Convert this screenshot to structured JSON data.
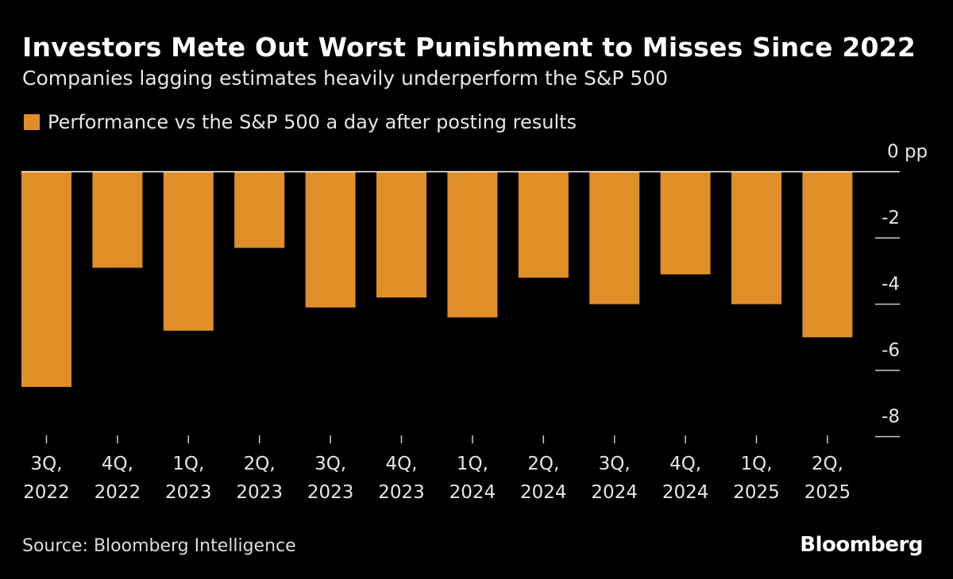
{
  "chart_data": {
    "type": "bar",
    "title": "Investors Mete Out Worst Punishment to Misses Since 2022",
    "subtitle": "Companies lagging estimates heavily underperform the S&P 500",
    "legend": [
      "Performance vs the S&P 500 a day after posting results"
    ],
    "legend_placement": "top-left",
    "categories": [
      [
        "3Q,",
        "2022"
      ],
      [
        "4Q,",
        "2022"
      ],
      [
        "1Q,",
        "2023"
      ],
      [
        "2Q,",
        "2023"
      ],
      [
        "3Q,",
        "2023"
      ],
      [
        "4Q,",
        "2023"
      ],
      [
        "1Q,",
        "2024"
      ],
      [
        "2Q,",
        "2024"
      ],
      [
        "3Q,",
        "2024"
      ],
      [
        "4Q,",
        "2024"
      ],
      [
        "1Q,",
        "2025"
      ],
      [
        "2Q,",
        "2025"
      ]
    ],
    "series": [
      {
        "name": "Performance vs the S&P 500 a day after posting results",
        "values": [
          -6.5,
          -2.9,
          -4.8,
          -2.3,
          -4.1,
          -3.8,
          -4.4,
          -3.2,
          -4.0,
          -3.1,
          -4.0,
          -5.0
        ],
        "color": "#e08e27"
      }
    ],
    "ylim": [
      -8,
      0
    ],
    "yticks": [
      0,
      -2,
      -4,
      -6,
      -8
    ],
    "ytick_labels": [
      "0 pp",
      "-2",
      "-4",
      "-6",
      "-8"
    ],
    "y_axis_side": "right",
    "grid": false,
    "source": "Source: Bloomberg Intelligence",
    "logo": "Bloomberg"
  }
}
